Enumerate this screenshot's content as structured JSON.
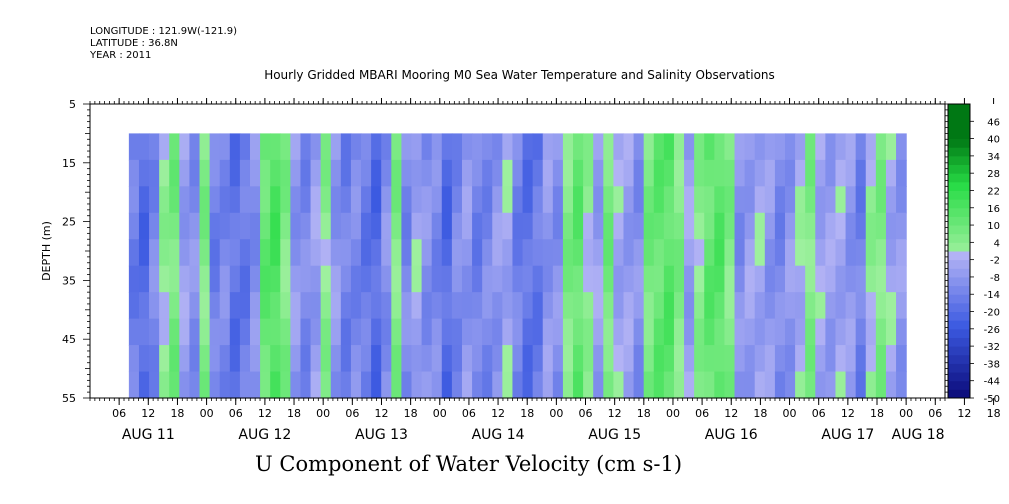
{
  "header": {
    "longitude": "LONGITUDE : 121.9W(-121.9)",
    "latitude": "LATITUDE : 36.8N",
    "year": "YEAR : 2011"
  },
  "chart_data": {
    "type": "heatmap",
    "title": "Hourly Gridded MBARI Mooring M0 Sea Water Temperature and Salinity Observations",
    "xlabel": "U Component of Water Velocity (cm s-1)",
    "ylabel": "DEPTH (m)",
    "ylim": [
      55,
      5
    ],
    "y_ticks": [
      "5",
      "15",
      "25",
      "35",
      "45",
      "55"
    ],
    "x_hour_ticks": [
      "06",
      "12",
      "18",
      "00",
      "06",
      "12",
      "18",
      "00",
      "06",
      "12",
      "18",
      "00",
      "06",
      "12",
      "18",
      "00",
      "06",
      "12",
      "18",
      "00",
      "06",
      "12",
      "18",
      "00",
      "06",
      "12",
      "18",
      "00",
      "06",
      "12",
      "18",
      "00"
    ],
    "x_day_labels": [
      "AUG 11",
      "AUG 12",
      "AUG 13",
      "AUG 14",
      "AUG 15",
      "AUG 16",
      "AUG 17",
      "AUG 18"
    ],
    "colorbar_labels": [
      "46",
      "40",
      "34",
      "28",
      "22",
      "16",
      "10",
      "4",
      "-2",
      "-8",
      "-14",
      "-20",
      "-26",
      "-32",
      "-38",
      "-44",
      "-50"
    ],
    "colorbar_range": [
      -50,
      52
    ],
    "data_depth_range": [
      10,
      55
    ],
    "data_hours_start": 8,
    "data_hours_end": 168,
    "u_profile": [
      -15,
      -20,
      -12,
      2,
      8,
      -6,
      -10,
      6,
      -14,
      -12,
      -18,
      -16,
      -10,
      12,
      16,
      6,
      -8,
      -12,
      -6,
      4,
      -8,
      -14,
      -12,
      -16,
      -20,
      -10,
      6,
      -12,
      -4,
      -10,
      -12,
      -20,
      -12,
      -8,
      -14,
      -12,
      -8,
      -4,
      -14,
      -18,
      -16,
      -8,
      -10,
      6,
      12,
      2,
      -6,
      8,
      -4,
      -6,
      -10,
      8,
      12,
      14,
      6,
      -6,
      4,
      12,
      14,
      6,
      -10,
      -6,
      -4,
      -8,
      -12,
      -8,
      -2,
      6,
      -4,
      -6,
      -4,
      -8,
      -14,
      2,
      6,
      -4,
      -8
    ]
  }
}
